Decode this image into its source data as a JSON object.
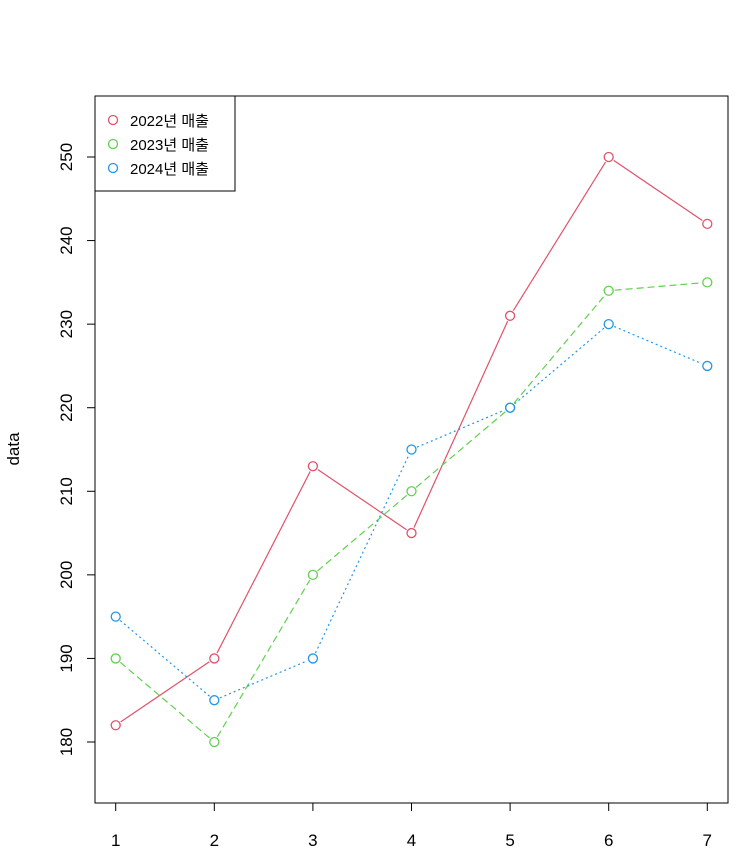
{
  "chart_data": {
    "type": "line",
    "title": "",
    "xlabel": "",
    "ylabel": "data",
    "x": [
      1,
      2,
      3,
      4,
      5,
      6,
      7
    ],
    "xlim": [
      0.79,
      7.21
    ],
    "ylim": [
      172.7,
      257.3
    ],
    "xticks": [
      1,
      2,
      3,
      4,
      5,
      6,
      7
    ],
    "yticks": [
      180,
      190,
      200,
      210,
      220,
      230,
      240,
      250
    ],
    "grid": false,
    "legend": {
      "position": "top-left"
    },
    "series": [
      {
        "name": "2022년 매출",
        "color": "#DF536B",
        "line": "solid",
        "marker": "open-circle",
        "values": [
          182,
          190,
          213,
          205,
          231,
          250,
          242
        ]
      },
      {
        "name": "2023년 매출",
        "color": "#61D04F",
        "line": "dashed",
        "marker": "open-circle",
        "values": [
          190,
          180,
          200,
          210,
          220,
          234,
          235
        ]
      },
      {
        "name": "2024년 매출",
        "color": "#2297E6",
        "line": "dotted",
        "marker": "open-circle",
        "values": [
          195,
          185,
          190,
          215,
          220,
          230,
          225
        ]
      }
    ]
  }
}
